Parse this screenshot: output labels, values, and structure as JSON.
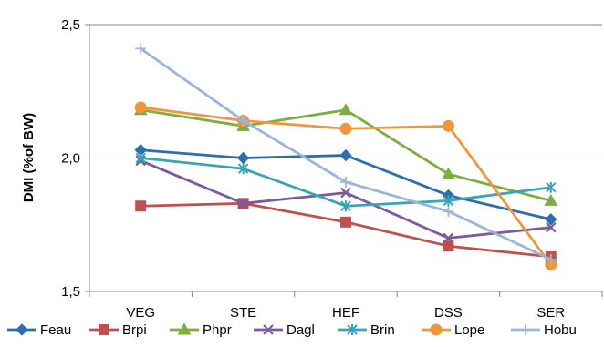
{
  "chart_data": {
    "type": "line",
    "title": "",
    "xlabel": "",
    "ylabel": "DMI (%of BW)",
    "ylim": [
      1.5,
      2.5
    ],
    "yticks": [
      "1,5",
      "2,0",
      "2,5"
    ],
    "ytick_values": [
      1.5,
      2.0,
      2.5
    ],
    "categories": [
      "VEG",
      "STE",
      "HEF",
      "DSS",
      "SER"
    ],
    "grid": "horizontal major",
    "legend": "bottom",
    "series": [
      {
        "name": "Feau",
        "color": "#2E6DB0",
        "marker": "diamond",
        "values": [
          2.03,
          2.0,
          2.01,
          1.86,
          1.77
        ]
      },
      {
        "name": "Brpi",
        "color": "#C0504D",
        "marker": "square",
        "values": [
          1.82,
          1.83,
          1.76,
          1.67,
          1.63
        ]
      },
      {
        "name": "Phpr",
        "color": "#7BAE3E",
        "marker": "triangle",
        "values": [
          2.18,
          2.12,
          2.18,
          1.94,
          1.84
        ]
      },
      {
        "name": "Dagl",
        "color": "#7B5A9E",
        "marker": "x",
        "values": [
          1.99,
          1.83,
          1.87,
          1.7,
          1.74
        ]
      },
      {
        "name": "Brin",
        "color": "#3AA4B7",
        "marker": "asterisk",
        "values": [
          2.0,
          1.96,
          1.82,
          1.84,
          1.89
        ]
      },
      {
        "name": "Lope",
        "color": "#F0963C",
        "marker": "circle",
        "values": [
          2.19,
          2.14,
          2.11,
          2.12,
          1.6
        ]
      },
      {
        "name": "Hobu",
        "color": "#99B5DA",
        "marker": "plus",
        "values": [
          2.41,
          2.14,
          1.91,
          1.8,
          1.62
        ]
      }
    ]
  }
}
